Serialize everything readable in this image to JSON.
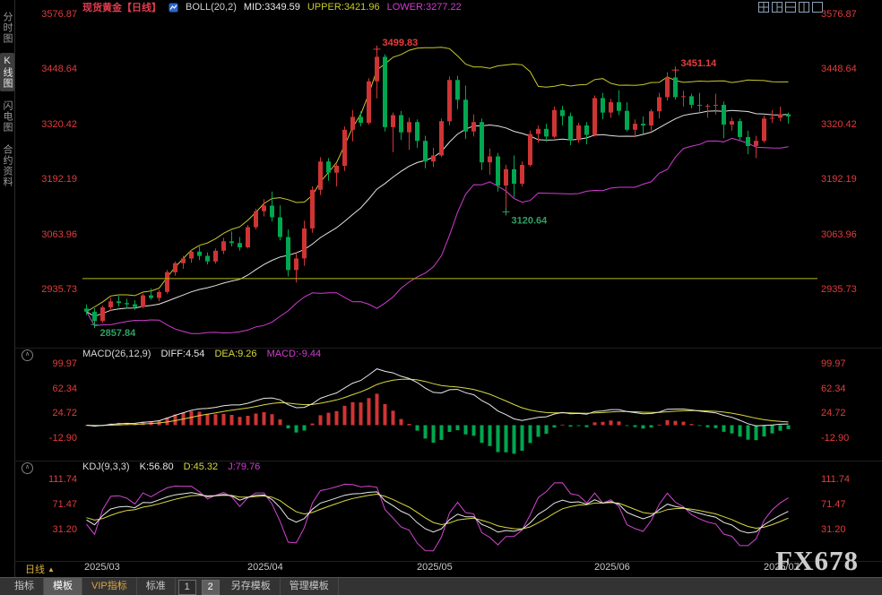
{
  "header": {
    "symbol": "现货黄金【日线】",
    "indicator": "BOLL(20,2)",
    "mid_label": "MID:3349.59",
    "upper_label": "UPPER:3421.96",
    "lower_label": "LOWER:3277.22"
  },
  "sidebar": {
    "items": [
      {
        "label": "分时图",
        "active": false
      },
      {
        "label": "K线图",
        "active": true
      },
      {
        "label": "闪电图",
        "active": false
      },
      {
        "label": "合约资料",
        "active": false
      }
    ]
  },
  "window_icons": [
    "layout-grid-4-icon",
    "layout-split-mixed-icon",
    "layout-split-horizontal-icon",
    "layout-split-vertical-icon",
    "layout-single-icon"
  ],
  "main_panel": {
    "axis_values": [
      "3576.87",
      "3448.64",
      "3320.42",
      "3192.19",
      "3063.96",
      "2935.73"
    ],
    "alert_line_price": 2965,
    "annotations": [
      {
        "i": 1,
        "price": 2857.84,
        "text": "2857.84",
        "color": "#2fa065",
        "pos": "below"
      },
      {
        "i": 36,
        "price": 3499.83,
        "text": "3499.83",
        "color": "#e83c3c",
        "pos": "above"
      },
      {
        "i": 52,
        "price": 3120.64,
        "text": "3120.64",
        "color": "#2fa065",
        "pos": "below"
      },
      {
        "i": 73,
        "price": 3451.14,
        "text": "3451.14",
        "color": "#e83c3c",
        "pos": "above"
      }
    ]
  },
  "macd_panel": {
    "title": "MACD(26,12,9)",
    "diff_label": "DIFF:4.54",
    "dea_label": "DEA:9.26",
    "macd_label": "MACD:-9.44",
    "axis_values": [
      "99.97",
      "62.34",
      "24.72",
      "-12.90"
    ]
  },
  "kdj_panel": {
    "title": "KDJ(9,3,3)",
    "k_label": "K:56.80",
    "d_label": "D:45.32",
    "j_label": "J:79.76",
    "axis_values": [
      "111.74",
      "71.47",
      "31.20"
    ]
  },
  "x_axis": {
    "period_label": "日线",
    "labels": [
      {
        "text": "2025/03",
        "i": 0
      },
      {
        "text": "2025/04",
        "i": 22
      },
      {
        "text": "2025/05",
        "i": 43
      },
      {
        "text": "2025/06",
        "i": 65
      },
      {
        "text": "2025/07",
        "i": 86
      }
    ]
  },
  "toolbar": {
    "items": [
      {
        "label": "指标",
        "name": "tab-indicators",
        "type": "tab"
      },
      {
        "label": "模板",
        "name": "tab-templates",
        "type": "tab",
        "active": true
      },
      {
        "label": "VIP指标",
        "name": "tab-vip-indicators",
        "type": "tab",
        "vip": true
      },
      {
        "label": "标准",
        "name": "tab-standard",
        "type": "tab"
      },
      {
        "label": "1",
        "name": "layout-preset-1-button",
        "type": "box"
      },
      {
        "label": "2",
        "name": "layout-preset-2-button",
        "type": "box",
        "active": true
      },
      {
        "label": "另存模板",
        "name": "save-template-button",
        "type": "tab"
      },
      {
        "label": "管理模板",
        "name": "manage-template-button",
        "type": "tab"
      }
    ]
  },
  "watermark": "FX678",
  "colors": {
    "up": "#cf3434",
    "down": "#00a750",
    "boll_upper": "#c9c92b",
    "boll_mid": "#e2e2e2",
    "boll_lower": "#d23cd2",
    "alert_line": "#b9b912",
    "diff_line": "#e8e8e8",
    "dea_line": "#d8d840",
    "k_line": "#e8e8e8",
    "d_line": "#d8d840",
    "j_line": "#d245d2"
  },
  "chart_data": [
    {
      "type": "candlestick",
      "title": "现货黄金 日线 + BOLL(20,2)",
      "x_labels": [
        "2025/03",
        "2025/04",
        "2025/05",
        "2025/06",
        "2025/07"
      ],
      "ylim": [
        2804,
        3581
      ],
      "axis_ticks": [
        3576.87,
        3448.64,
        3320.42,
        3192.19,
        3063.96,
        2935.73
      ],
      "extremes": {
        "high": 3499.83,
        "low": 2857.84,
        "june_high": 3451.14,
        "may_low": 3120.64
      },
      "overlays": [
        {
          "name": "BOLL UPPER",
          "derive": "SMA20+2SD",
          "color": "#c9c92b"
        },
        {
          "name": "BOLL MID",
          "derive": "SMA20",
          "color": "#e2e2e2"
        },
        {
          "name": "BOLL LOWER",
          "derive": "SMA20-2SD",
          "color": "#d23cd2"
        }
      ],
      "ohlc": [
        [
          2895,
          2905,
          2880,
          2888
        ],
        [
          2888,
          2896,
          2857.84,
          2866
        ],
        [
          2866,
          2902,
          2862,
          2898
        ],
        [
          2898,
          2920,
          2890,
          2912
        ],
        [
          2912,
          2925,
          2900,
          2908
        ],
        [
          2908,
          2918,
          2895,
          2905
        ],
        [
          2905,
          2915,
          2892,
          2899
        ],
        [
          2899,
          2930,
          2896,
          2926
        ],
        [
          2926,
          2942,
          2916,
          2920
        ],
        [
          2920,
          2938,
          2912,
          2934
        ],
        [
          2934,
          2985,
          2930,
          2980
        ],
        [
          2980,
          3005,
          2972,
          3001
        ],
        [
          3001,
          3018,
          2988,
          3012
        ],
        [
          3012,
          3032,
          3002,
          3028
        ],
        [
          3028,
          3040,
          3008,
          3018
        ],
        [
          3018,
          3026,
          2998,
          3005
        ],
        [
          3005,
          3035,
          3000,
          3030
        ],
        [
          3030,
          3060,
          3022,
          3052
        ],
        [
          3052,
          3075,
          3040,
          3048
        ],
        [
          3048,
          3062,
          3030,
          3038
        ],
        [
          3038,
          3090,
          3035,
          3085
        ],
        [
          3085,
          3128,
          3080,
          3122
        ],
        [
          3122,
          3150,
          3110,
          3135
        ],
        [
          3135,
          3168,
          3098,
          3108
        ],
        [
          3108,
          3136,
          3054,
          3062
        ],
        [
          3062,
          3080,
          2970,
          2985
        ],
        [
          2985,
          3025,
          2956,
          3012
        ],
        [
          3012,
          3100,
          2995,
          3082
        ],
        [
          3082,
          3180,
          3072,
          3172
        ],
        [
          3172,
          3248,
          3160,
          3238
        ],
        [
          3238,
          3246,
          3193,
          3212
        ],
        [
          3212,
          3232,
          3180,
          3228
        ],
        [
          3228,
          3320,
          3216,
          3312
        ],
        [
          3312,
          3358,
          3285,
          3342
        ],
        [
          3342,
          3355,
          3320,
          3328
        ],
        [
          3328,
          3432,
          3324,
          3425
        ],
        [
          3425,
          3499.83,
          3385,
          3482
        ],
        [
          3482,
          3488,
          3308,
          3318
        ],
        [
          3318,
          3352,
          3260,
          3346
        ],
        [
          3346,
          3356,
          3288,
          3306
        ],
        [
          3306,
          3340,
          3265,
          3330
        ],
        [
          3330,
          3336,
          3270,
          3286
        ],
        [
          3286,
          3298,
          3222,
          3238
        ],
        [
          3238,
          3270,
          3225,
          3252
        ],
        [
          3252,
          3338,
          3248,
          3332
        ],
        [
          3332,
          3436,
          3322,
          3428
        ],
        [
          3428,
          3438,
          3360,
          3382
        ],
        [
          3382,
          3415,
          3290,
          3308
        ],
        [
          3308,
          3348,
          3296,
          3330
        ],
        [
          3330,
          3338,
          3218,
          3236
        ],
        [
          3236,
          3268,
          3207,
          3250
        ],
        [
          3250,
          3258,
          3168,
          3182
        ],
        [
          3182,
          3230,
          3120.64,
          3220
        ],
        [
          3220,
          3252,
          3154,
          3186
        ],
        [
          3186,
          3238,
          3180,
          3230
        ],
        [
          3230,
          3310,
          3226,
          3302
        ],
        [
          3302,
          3322,
          3282,
          3314
        ],
        [
          3314,
          3326,
          3284,
          3296
        ],
        [
          3296,
          3366,
          3292,
          3358
        ],
        [
          3358,
          3368,
          3322,
          3344
        ],
        [
          3344,
          3352,
          3276,
          3288
        ],
        [
          3288,
          3328,
          3282,
          3322
        ],
        [
          3322,
          3330,
          3278,
          3300
        ],
        [
          3300,
          3392,
          3296,
          3386
        ],
        [
          3386,
          3398,
          3336,
          3352
        ],
        [
          3352,
          3384,
          3340,
          3376
        ],
        [
          3376,
          3404,
          3346,
          3356
        ],
        [
          3356,
          3376,
          3308,
          3312
        ],
        [
          3312,
          3336,
          3294,
          3326
        ],
        [
          3326,
          3343,
          3302,
          3322
        ],
        [
          3322,
          3360,
          3310,
          3355
        ],
        [
          3355,
          3398,
          3338,
          3388
        ],
        [
          3388,
          3446,
          3380,
          3434
        ],
        [
          3434,
          3451.14,
          3382,
          3388
        ],
        [
          3388,
          3403,
          3366,
          3390
        ],
        [
          3390,
          3396,
          3362,
          3370
        ],
        [
          3370,
          3398,
          3354,
          3368
        ],
        [
          3368,
          3372,
          3340,
          3368
        ],
        [
          3368,
          3396,
          3348,
          3370
        ],
        [
          3370,
          3378,
          3292,
          3324
        ],
        [
          3324,
          3340,
          3310,
          3332
        ],
        [
          3332,
          3338,
          3288,
          3295
        ],
        [
          3295,
          3310,
          3255,
          3274
        ],
        [
          3274,
          3298,
          3246,
          3286
        ],
        [
          3286,
          3345,
          3282,
          3338
        ],
        [
          3338,
          3358,
          3328,
          3340
        ],
        [
          3340,
          3366,
          3332,
          3348
        ],
        [
          3348,
          3352,
          3326,
          3343
        ]
      ]
    },
    {
      "type": "bar",
      "title": "MACD(26,12,9)",
      "derive": "DIFF=EMA12-EMA26, DEA=EMA9(DIFF), MACD=2*(DIFF-DEA) from ohlc closes",
      "current": {
        "DIFF": 4.54,
        "DEA": 9.26,
        "MACD": -9.44
      },
      "axis_ticks": [
        99.97,
        62.34,
        24.72,
        -12.9
      ]
    },
    {
      "type": "line",
      "title": "KDJ(9,3,3)",
      "derive": "K/D/J computed from ohlc with 9,3,3",
      "current": {
        "K": 56.8,
        "D": 45.32,
        "J": 79.76
      },
      "axis_ticks": [
        111.74,
        71.47,
        31.2
      ],
      "ylim": [
        -30,
        125
      ]
    }
  ]
}
